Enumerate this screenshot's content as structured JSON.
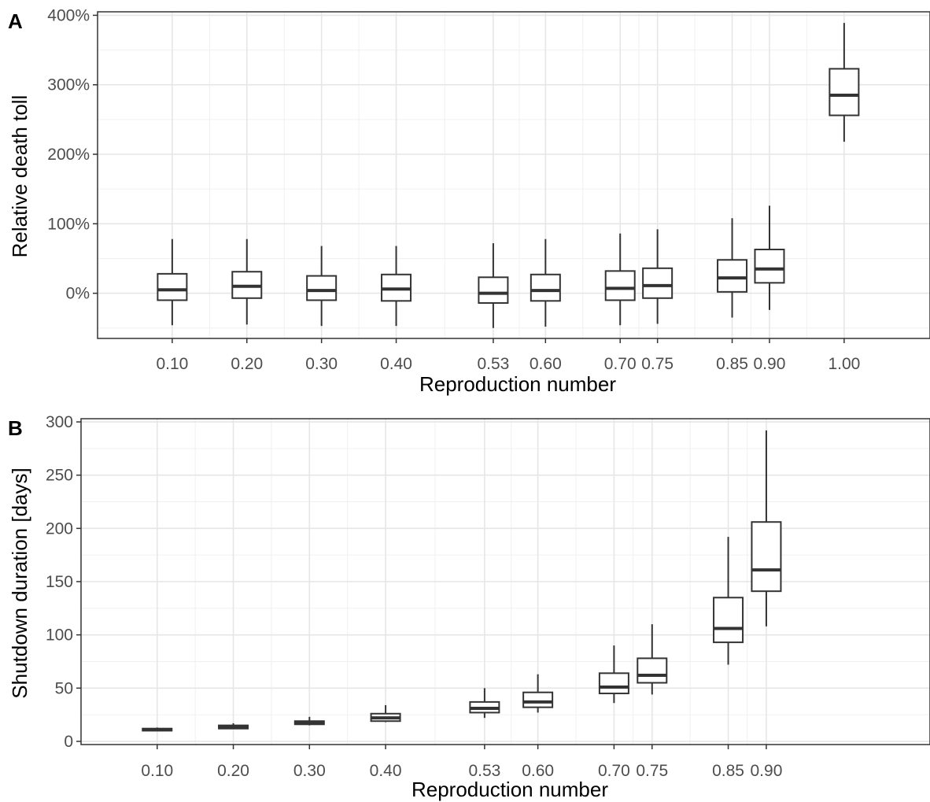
{
  "chart_data": [
    {
      "panel": "A",
      "type": "box",
      "xlabel": "Reproduction number",
      "ylabel": "Relative death toll",
      "y_unit": "%",
      "ylim": [
        -65,
        405
      ],
      "xlim": [
        0.0,
        1.115
      ],
      "y_ticks": [
        0,
        100,
        200,
        300,
        400
      ],
      "y_tick_labels": [
        "0%",
        "100%",
        "200%",
        "300%",
        "400%"
      ],
      "x_tick_labels": [
        "0.10",
        "0.20",
        "0.30",
        "0.40",
        "0.53",
        "0.60",
        "0.70",
        "0.75",
        "0.85",
        "0.90",
        "1.00"
      ],
      "grid": true,
      "boxes": [
        {
          "x": "0.10",
          "whisker_low": -46,
          "q1": -10,
          "median": 5,
          "q3": 28,
          "whisker_high": 78
        },
        {
          "x": "0.20",
          "whisker_low": -45,
          "q1": -7,
          "median": 10,
          "q3": 31,
          "whisker_high": 78
        },
        {
          "x": "0.30",
          "whisker_low": -47,
          "q1": -10,
          "median": 4,
          "q3": 25,
          "whisker_high": 68
        },
        {
          "x": "0.40",
          "whisker_low": -47,
          "q1": -11,
          "median": 6,
          "q3": 27,
          "whisker_high": 68
        },
        {
          "x": "0.53",
          "whisker_low": -50,
          "q1": -14,
          "median": 0,
          "q3": 23,
          "whisker_high": 72
        },
        {
          "x": "0.60",
          "whisker_low": -48,
          "q1": -11,
          "median": 4,
          "q3": 27,
          "whisker_high": 78
        },
        {
          "x": "0.70",
          "whisker_low": -46,
          "q1": -10,
          "median": 7,
          "q3": 32,
          "whisker_high": 86
        },
        {
          "x": "0.75",
          "whisker_low": -44,
          "q1": -7,
          "median": 11,
          "q3": 36,
          "whisker_high": 92
        },
        {
          "x": "0.85",
          "whisker_low": -35,
          "q1": 2,
          "median": 22,
          "q3": 48,
          "whisker_high": 108
        },
        {
          "x": "0.90",
          "whisker_low": -24,
          "q1": 15,
          "median": 35,
          "q3": 63,
          "whisker_high": 126
        },
        {
          "x": "1.00",
          "whisker_low": 218,
          "q1": 256,
          "median": 285,
          "q3": 323,
          "whisker_high": 389
        }
      ]
    },
    {
      "panel": "B",
      "type": "box",
      "xlabel": "Reproduction number",
      "ylabel": "Shutdown duration [days]",
      "ylim": [
        -3,
        303
      ],
      "xlim": [
        0.0,
        1.115
      ],
      "y_ticks": [
        0,
        50,
        100,
        150,
        200,
        250,
        300
      ],
      "y_tick_labels": [
        "0",
        "50",
        "100",
        "150",
        "200",
        "250",
        "300"
      ],
      "x_tick_labels": [
        "0.10",
        "0.20",
        "0.30",
        "0.40",
        "0.53",
        "0.60",
        "0.70",
        "0.75",
        "0.85",
        "0.90"
      ],
      "grid": true,
      "boxes": [
        {
          "x": "0.10",
          "whisker_low": 10,
          "q1": 10,
          "median": 11,
          "q3": 12,
          "whisker_high": 13
        },
        {
          "x": "0.20",
          "whisker_low": 12,
          "q1": 12,
          "median": 14,
          "q3": 15,
          "whisker_high": 17
        },
        {
          "x": "0.30",
          "whisker_low": 15,
          "q1": 16,
          "median": 17,
          "q3": 19,
          "whisker_high": 23
        },
        {
          "x": "0.40",
          "whisker_low": 18,
          "q1": 19,
          "median": 22,
          "q3": 26,
          "whisker_high": 34
        },
        {
          "x": "0.53",
          "whisker_low": 22,
          "q1": 27,
          "median": 31,
          "q3": 37,
          "whisker_high": 50
        },
        {
          "x": "0.60",
          "whisker_low": 27,
          "q1": 32,
          "median": 37,
          "q3": 46,
          "whisker_high": 63
        },
        {
          "x": "0.70",
          "whisker_low": 36,
          "q1": 45,
          "median": 51,
          "q3": 64,
          "whisker_high": 90
        },
        {
          "x": "0.75",
          "whisker_low": 44,
          "q1": 55,
          "median": 62,
          "q3": 78,
          "whisker_high": 110
        },
        {
          "x": "0.85",
          "whisker_low": 72,
          "q1": 93,
          "median": 106,
          "q3": 135,
          "whisker_high": 192
        },
        {
          "x": "0.90",
          "whisker_low": 108,
          "q1": 141,
          "median": 161,
          "q3": 206,
          "whisker_high": 292
        }
      ]
    }
  ]
}
